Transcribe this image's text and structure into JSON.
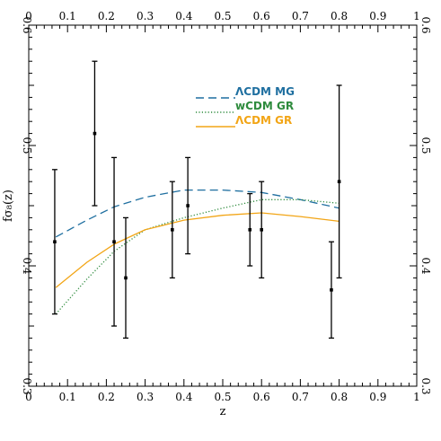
{
  "chart_data": {
    "type": "line",
    "xlabel": "z",
    "ylabel": "fσ₈(z)",
    "xlim": [
      0,
      1
    ],
    "ylim": [
      0.3,
      0.6
    ],
    "x_major_ticks": [
      0,
      0.1,
      0.2,
      0.3,
      0.4,
      0.5,
      0.6,
      0.7,
      0.8,
      0.9,
      1
    ],
    "x_tick_labels": [
      "0",
      "0.1",
      "0.2",
      "0.3",
      "0.4",
      "0.5",
      "0.6",
      "0.7",
      "0.8",
      "0.9",
      "1"
    ],
    "y_major_ticks": [
      0.3,
      0.4,
      0.5,
      0.6
    ],
    "y_tick_labels": [
      "0.3",
      "0.4",
      "0.5",
      "0.6"
    ],
    "grid": false,
    "legend_position": "top-center",
    "series": [
      {
        "name": "ΛCDM MG",
        "color": "#1f6fa0",
        "style": "dashed",
        "x": [
          0.07,
          0.15,
          0.22,
          0.3,
          0.4,
          0.5,
          0.6,
          0.7,
          0.8
        ],
        "y": [
          0.424,
          0.438,
          0.449,
          0.457,
          0.463,
          0.463,
          0.461,
          0.455,
          0.448
        ]
      },
      {
        "name": "wCDM GR",
        "color": "#2e8b3d",
        "style": "dotted",
        "x": [
          0.07,
          0.15,
          0.22,
          0.3,
          0.4,
          0.5,
          0.6,
          0.7,
          0.8
        ],
        "y": [
          0.36,
          0.389,
          0.412,
          0.43,
          0.44,
          0.448,
          0.455,
          0.455,
          0.452
        ]
      },
      {
        "name": "ΛCDM GR",
        "color": "#f2a516",
        "style": "solid",
        "x": [
          0.07,
          0.15,
          0.22,
          0.3,
          0.4,
          0.5,
          0.6,
          0.7,
          0.8
        ],
        "y": [
          0.382,
          0.403,
          0.418,
          0.43,
          0.438,
          0.442,
          0.444,
          0.441,
          0.437
        ]
      }
    ],
    "measurements": [
      {
        "x": 0.067,
        "y": 0.42,
        "ylow": 0.36,
        "yhigh": 0.48
      },
      {
        "x": 0.17,
        "y": 0.51,
        "ylow": 0.45,
        "yhigh": 0.57
      },
      {
        "x": 0.22,
        "y": 0.42,
        "ylow": 0.35,
        "yhigh": 0.49
      },
      {
        "x": 0.25,
        "y": 0.39,
        "ylow": 0.34,
        "yhigh": 0.44
      },
      {
        "x": 0.37,
        "y": 0.43,
        "ylow": 0.39,
        "yhigh": 0.47
      },
      {
        "x": 0.41,
        "y": 0.45,
        "ylow": 0.41,
        "yhigh": 0.49
      },
      {
        "x": 0.57,
        "y": 0.43,
        "ylow": 0.4,
        "yhigh": 0.46
      },
      {
        "x": 0.6,
        "y": 0.43,
        "ylow": 0.39,
        "yhigh": 0.47
      },
      {
        "x": 0.78,
        "y": 0.38,
        "ylow": 0.34,
        "yhigh": 0.42
      },
      {
        "x": 0.8,
        "y": 0.47,
        "ylow": 0.39,
        "yhigh": 0.55
      }
    ]
  }
}
